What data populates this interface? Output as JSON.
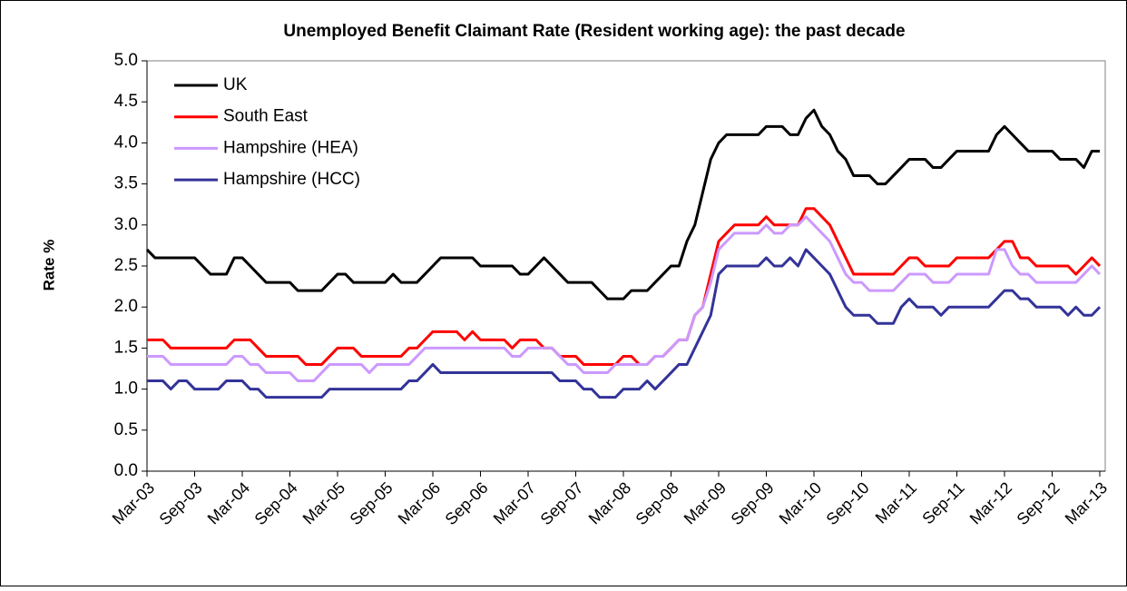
{
  "chart_data": {
    "type": "line",
    "title": "Unemployed Benefit Claimant Rate (Resident working age): the past decade",
    "y_label": "Rate %",
    "categories": [
      "Mar-03",
      null,
      null,
      null,
      null,
      null,
      "Sep-03",
      null,
      null,
      null,
      null,
      null,
      "Mar-04",
      null,
      null,
      null,
      null,
      null,
      "Sep-04",
      null,
      null,
      null,
      null,
      null,
      "Mar-05",
      null,
      null,
      null,
      null,
      null,
      "Sep-05",
      null,
      null,
      null,
      null,
      null,
      "Mar-06",
      null,
      null,
      null,
      null,
      null,
      "Sep-06",
      null,
      null,
      null,
      null,
      null,
      "Mar-07",
      null,
      null,
      null,
      null,
      null,
      "Sep-07",
      null,
      null,
      null,
      null,
      null,
      "Mar-08",
      null,
      null,
      null,
      null,
      null,
      "Sep-08",
      null,
      null,
      null,
      null,
      null,
      "Mar-09",
      null,
      null,
      null,
      null,
      null,
      "Sep-09",
      null,
      null,
      null,
      null,
      null,
      "Mar-10",
      null,
      null,
      null,
      null,
      null,
      "Sep-10",
      null,
      null,
      null,
      null,
      null,
      "Mar-11",
      null,
      null,
      null,
      null,
      null,
      "Sep-11",
      null,
      null,
      null,
      null,
      null,
      "Mar-12",
      null,
      null,
      null,
      null,
      null,
      "Sep-12",
      null,
      null,
      null,
      null,
      null,
      "Mar-13"
    ],
    "series": [
      {
        "name": "UK",
        "color": "#000000",
        "values": [
          2.7,
          2.6,
          2.6,
          2.6,
          2.6,
          2.6,
          2.6,
          2.5,
          2.4,
          2.4,
          2.4,
          2.6,
          2.6,
          2.5,
          2.4,
          2.3,
          2.3,
          2.3,
          2.3,
          2.2,
          2.2,
          2.2,
          2.2,
          2.3,
          2.4,
          2.4,
          2.3,
          2.3,
          2.3,
          2.3,
          2.3,
          2.4,
          2.3,
          2.3,
          2.3,
          2.4,
          2.5,
          2.6,
          2.6,
          2.6,
          2.6,
          2.6,
          2.5,
          2.5,
          2.5,
          2.5,
          2.5,
          2.4,
          2.4,
          2.5,
          2.6,
          2.5,
          2.4,
          2.3,
          2.3,
          2.3,
          2.3,
          2.2,
          2.1,
          2.1,
          2.1,
          2.2,
          2.2,
          2.2,
          2.3,
          2.4,
          2.5,
          2.5,
          2.8,
          3.0,
          3.4,
          3.8,
          4.0,
          4.1,
          4.1,
          4.1,
          4.1,
          4.1,
          4.2,
          4.2,
          4.2,
          4.1,
          4.1,
          4.3,
          4.4,
          4.2,
          4.1,
          3.9,
          3.8,
          3.6,
          3.6,
          3.6,
          3.5,
          3.5,
          3.6,
          3.7,
          3.8,
          3.8,
          3.8,
          3.7,
          3.7,
          3.8,
          3.9,
          3.9,
          3.9,
          3.9,
          3.9,
          4.1,
          4.2,
          4.1,
          4.0,
          3.9,
          3.9,
          3.9,
          3.9,
          3.8,
          3.8,
          3.8,
          3.7,
          3.9,
          3.9
        ]
      },
      {
        "name": "South East",
        "color": "#ff0000",
        "values": [
          1.6,
          1.6,
          1.6,
          1.5,
          1.5,
          1.5,
          1.5,
          1.5,
          1.5,
          1.5,
          1.5,
          1.6,
          1.6,
          1.6,
          1.5,
          1.4,
          1.4,
          1.4,
          1.4,
          1.4,
          1.3,
          1.3,
          1.3,
          1.4,
          1.5,
          1.5,
          1.5,
          1.4,
          1.4,
          1.4,
          1.4,
          1.4,
          1.4,
          1.5,
          1.5,
          1.6,
          1.7,
          1.7,
          1.7,
          1.7,
          1.6,
          1.7,
          1.6,
          1.6,
          1.6,
          1.6,
          1.5,
          1.6,
          1.6,
          1.6,
          1.5,
          1.5,
          1.4,
          1.4,
          1.4,
          1.3,
          1.3,
          1.3,
          1.3,
          1.3,
          1.4,
          1.4,
          1.3,
          1.3,
          1.4,
          1.4,
          1.5,
          1.6,
          1.6,
          1.9,
          2.0,
          2.4,
          2.8,
          2.9,
          3.0,
          3.0,
          3.0,
          3.0,
          3.1,
          3.0,
          3.0,
          3.0,
          3.0,
          3.2,
          3.2,
          3.1,
          3.0,
          2.8,
          2.6,
          2.4,
          2.4,
          2.4,
          2.4,
          2.4,
          2.4,
          2.5,
          2.6,
          2.6,
          2.5,
          2.5,
          2.5,
          2.5,
          2.6,
          2.6,
          2.6,
          2.6,
          2.6,
          2.7,
          2.8,
          2.8,
          2.6,
          2.6,
          2.5,
          2.5,
          2.5,
          2.5,
          2.5,
          2.4,
          2.5,
          2.6,
          2.5
        ]
      },
      {
        "name": "Hampshire (HEA)",
        "color": "#cc99ff",
        "values": [
          1.4,
          1.4,
          1.4,
          1.3,
          1.3,
          1.3,
          1.3,
          1.3,
          1.3,
          1.3,
          1.3,
          1.4,
          1.4,
          1.3,
          1.3,
          1.2,
          1.2,
          1.2,
          1.2,
          1.1,
          1.1,
          1.1,
          1.2,
          1.3,
          1.3,
          1.3,
          1.3,
          1.3,
          1.2,
          1.3,
          1.3,
          1.3,
          1.3,
          1.3,
          1.4,
          1.5,
          1.5,
          1.5,
          1.5,
          1.5,
          1.5,
          1.5,
          1.5,
          1.5,
          1.5,
          1.5,
          1.4,
          1.4,
          1.5,
          1.5,
          1.5,
          1.5,
          1.4,
          1.3,
          1.3,
          1.2,
          1.2,
          1.2,
          1.2,
          1.3,
          1.3,
          1.3,
          1.3,
          1.3,
          1.4,
          1.4,
          1.5,
          1.6,
          1.6,
          1.9,
          2.0,
          2.3,
          2.7,
          2.8,
          2.9,
          2.9,
          2.9,
          2.9,
          3.0,
          2.9,
          2.9,
          3.0,
          3.0,
          3.1,
          3.0,
          2.9,
          2.8,
          2.6,
          2.4,
          2.3,
          2.3,
          2.2,
          2.2,
          2.2,
          2.2,
          2.3,
          2.4,
          2.4,
          2.4,
          2.3,
          2.3,
          2.3,
          2.4,
          2.4,
          2.4,
          2.4,
          2.4,
          2.7,
          2.7,
          2.5,
          2.4,
          2.4,
          2.3,
          2.3,
          2.3,
          2.3,
          2.3,
          2.3,
          2.4,
          2.5,
          2.4
        ]
      },
      {
        "name": "Hampshire (HCC)",
        "color": "#333399",
        "values": [
          1.1,
          1.1,
          1.1,
          1.0,
          1.1,
          1.1,
          1.0,
          1.0,
          1.0,
          1.0,
          1.1,
          1.1,
          1.1,
          1.0,
          1.0,
          0.9,
          0.9,
          0.9,
          0.9,
          0.9,
          0.9,
          0.9,
          0.9,
          1.0,
          1.0,
          1.0,
          1.0,
          1.0,
          1.0,
          1.0,
          1.0,
          1.0,
          1.0,
          1.1,
          1.1,
          1.2,
          1.3,
          1.2,
          1.2,
          1.2,
          1.2,
          1.2,
          1.2,
          1.2,
          1.2,
          1.2,
          1.2,
          1.2,
          1.2,
          1.2,
          1.2,
          1.2,
          1.1,
          1.1,
          1.1,
          1.0,
          1.0,
          0.9,
          0.9,
          0.9,
          1.0,
          1.0,
          1.0,
          1.1,
          1.0,
          1.1,
          1.2,
          1.3,
          1.3,
          1.5,
          1.7,
          1.9,
          2.4,
          2.5,
          2.5,
          2.5,
          2.5,
          2.5,
          2.6,
          2.5,
          2.5,
          2.6,
          2.5,
          2.7,
          2.6,
          2.5,
          2.4,
          2.2,
          2.0,
          1.9,
          1.9,
          1.9,
          1.8,
          1.8,
          1.8,
          2.0,
          2.1,
          2.0,
          2.0,
          2.0,
          1.9,
          2.0,
          2.0,
          2.0,
          2.0,
          2.0,
          2.0,
          2.1,
          2.2,
          2.2,
          2.1,
          2.1,
          2.0,
          2.0,
          2.0,
          2.0,
          1.9,
          2.0,
          1.9,
          1.9,
          2.0
        ]
      }
    ],
    "ylim": [
      0,
      5
    ],
    "yticks": [
      {
        "value": 0,
        "label": "0.0"
      },
      {
        "value": 0.5,
        "label": "0.5"
      },
      {
        "value": 1,
        "label": "1.0"
      },
      {
        "value": 1.5,
        "label": "1.5"
      },
      {
        "value": 2,
        "label": "2.0"
      },
      {
        "value": 2.5,
        "label": "2.5"
      },
      {
        "value": 3,
        "label": "3.0"
      },
      {
        "value": 3.5,
        "label": "3.5"
      },
      {
        "value": 4,
        "label": "4.0"
      },
      {
        "value": 4.5,
        "label": "4.5"
      },
      {
        "value": 5,
        "label": "5.0"
      }
    ],
    "grid": false,
    "legend": "upper left"
  }
}
